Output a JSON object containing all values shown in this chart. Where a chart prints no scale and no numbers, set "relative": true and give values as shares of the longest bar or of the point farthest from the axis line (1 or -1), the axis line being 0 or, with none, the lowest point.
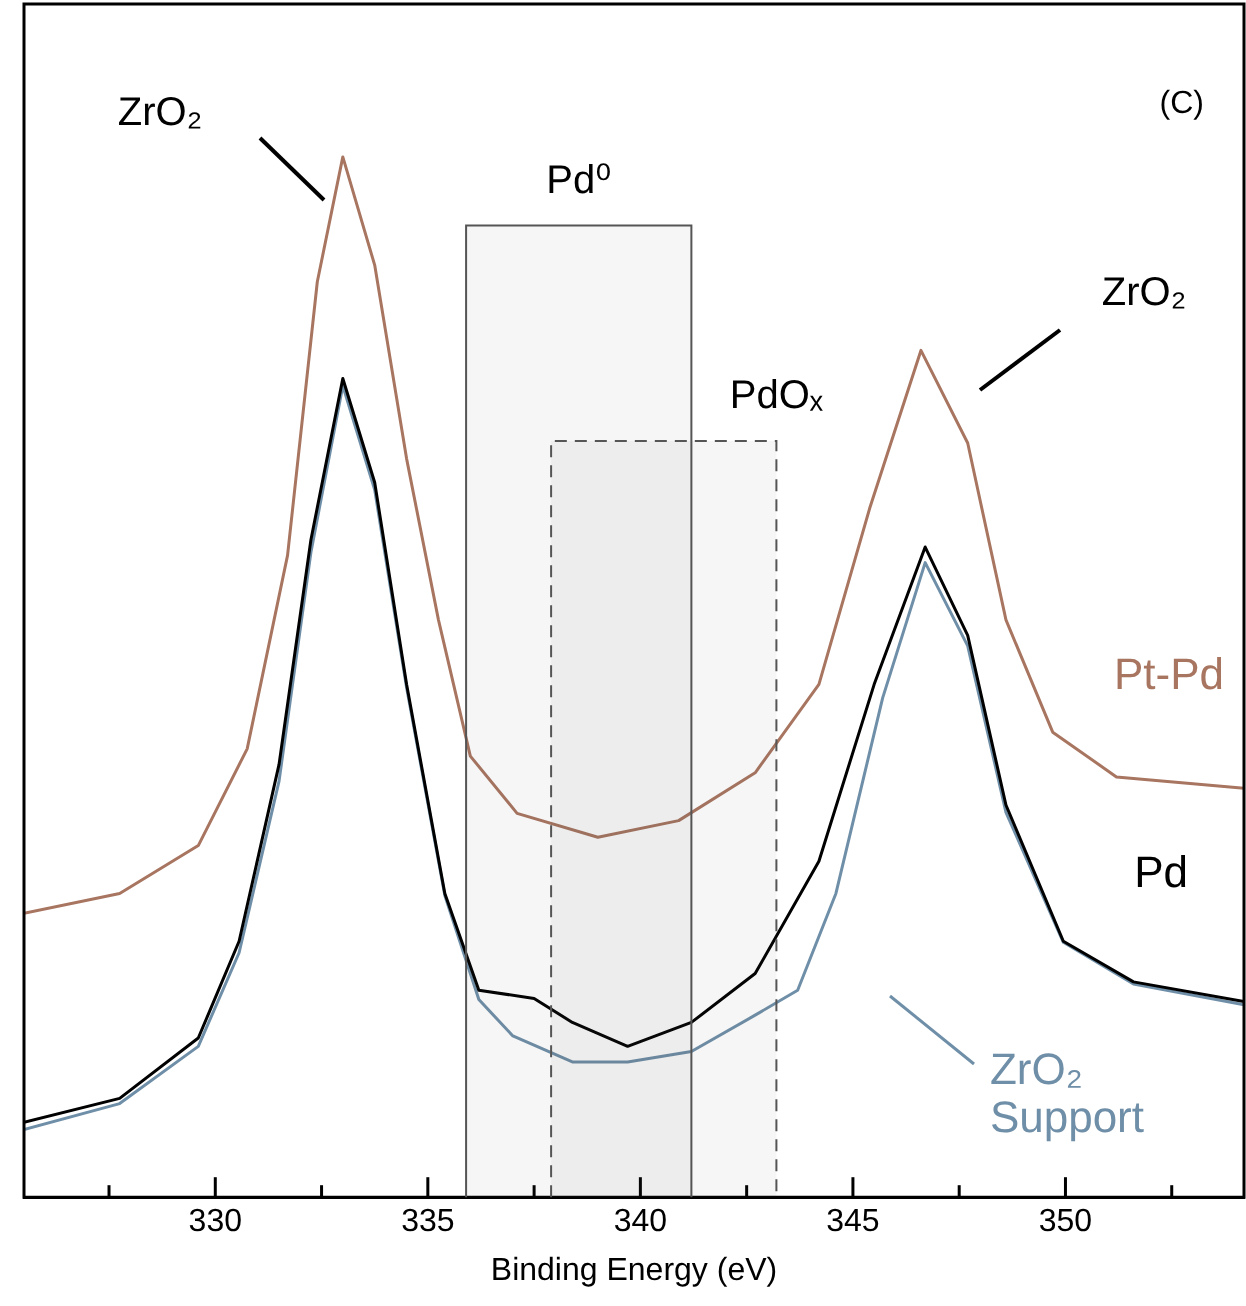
{
  "chart_data": {
    "type": "line",
    "relative": true,
    "xlabel": "Binding Energy (eV)",
    "xlim": [
      325.5,
      354.2
    ],
    "xticks": [
      {
        "value": 327.5,
        "label": null
      },
      330,
      {
        "value": 332.5,
        "label": null
      },
      335,
      {
        "value": 337.5,
        "label": null
      },
      340,
      {
        "value": 342.5,
        "label": null
      },
      345,
      {
        "value": 347.5,
        "label": null
      },
      350,
      {
        "value": 352.5,
        "label": null
      }
    ],
    "grid": false,
    "legend": false,
    "marker": "none",
    "line_style": "solid",
    "series": [
      {
        "name": "Pt-Pd",
        "color": "#a87560",
        "x": [
          325.5,
          327.75,
          329.6,
          330.75,
          331.7,
          332.4,
          333.0,
          333.75,
          334.5,
          335.25,
          336.0,
          337.1,
          339.0,
          340.9,
          342.7,
          344.2,
          345.4,
          346.6,
          347.7,
          348.6,
          349.7,
          351.2,
          354.2
        ],
        "values": [
          0.273,
          0.292,
          0.338,
          0.431,
          0.617,
          0.88,
          1.0,
          0.896,
          0.71,
          0.555,
          0.424,
          0.369,
          0.346,
          0.362,
          0.408,
          0.493,
          0.663,
          0.814,
          0.725,
          0.555,
          0.447,
          0.404,
          0.393
        ]
      },
      {
        "name": "Pd",
        "color": "#000000",
        "x": [
          325.5,
          327.75,
          329.6,
          330.56,
          331.5,
          332.25,
          333.0,
          333.75,
          334.5,
          335.4,
          336.2,
          337.5,
          338.4,
          339.7,
          341.2,
          342.7,
          344.2,
          345.5,
          346.7,
          347.7,
          348.6,
          349.95,
          351.6,
          354.2
        ],
        "values": [
          0.072,
          0.095,
          0.153,
          0.246,
          0.416,
          0.632,
          0.787,
          0.687,
          0.493,
          0.292,
          0.199,
          0.191,
          0.168,
          0.145,
          0.168,
          0.215,
          0.323,
          0.493,
          0.625,
          0.54,
          0.377,
          0.246,
          0.207,
          0.188
        ]
      },
      {
        "name": "ZrO₂ Support",
        "color": "#6f8fa8",
        "x": [
          325.5,
          327.75,
          329.6,
          330.56,
          331.5,
          332.25,
          333.0,
          333.75,
          334.5,
          335.4,
          336.2,
          337.0,
          338.4,
          339.7,
          341.2,
          342.7,
          343.7,
          344.6,
          345.7,
          346.7,
          347.7,
          348.6,
          349.95,
          351.6,
          354.2
        ],
        "values": [
          0.065,
          0.09,
          0.145,
          0.235,
          0.4,
          0.62,
          0.78,
          0.68,
          0.49,
          0.29,
          0.19,
          0.155,
          0.13,
          0.13,
          0.14,
          0.175,
          0.199,
          0.292,
          0.48,
          0.61,
          0.53,
          0.37,
          0.245,
          0.205,
          0.185
        ]
      }
    ],
    "bands": [
      {
        "axis": "x",
        "from": 335.9,
        "to": 341.2,
        "label": "Pd⁰",
        "color": "#555555"
      },
      {
        "axis": "x",
        "from": 337.9,
        "to": 343.2,
        "label": "PdOₓ",
        "color": "#555555"
      }
    ],
    "annotations": [
      "ZrO₂",
      "ZrO₂",
      "(C)"
    ]
  }
}
